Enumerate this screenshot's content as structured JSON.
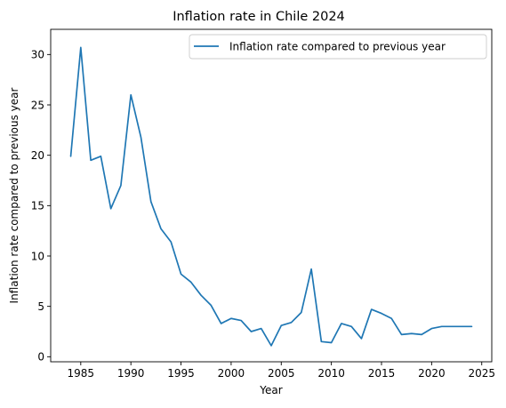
{
  "chart_data": {
    "type": "line",
    "title": "Inflation rate in Chile 2024",
    "xlabel": "Year",
    "ylabel": "Inflation rate compared to previous year",
    "xlim": [
      1982,
      2026
    ],
    "ylim": [
      -0.5,
      32.5
    ],
    "xticks": [
      1985,
      1990,
      1995,
      2000,
      2005,
      2010,
      2015,
      2020,
      2025
    ],
    "yticks": [
      0,
      5,
      10,
      15,
      20,
      25,
      30
    ],
    "grid": false,
    "legend_position": "top-right",
    "series": [
      {
        "name": "Inflation rate compared to previous year",
        "color": "#1f77b4",
        "x": [
          1984,
          1985,
          1986,
          1987,
          1988,
          1989,
          1990,
          1991,
          1992,
          1993,
          1994,
          1995,
          1996,
          1997,
          1998,
          1999,
          2000,
          2001,
          2002,
          2003,
          2004,
          2005,
          2006,
          2007,
          2008,
          2009,
          2010,
          2011,
          2012,
          2013,
          2014,
          2015,
          2016,
          2017,
          2018,
          2019,
          2020,
          2021,
          2022,
          2023,
          2024
        ],
        "y": [
          19.9,
          30.7,
          19.5,
          19.9,
          14.7,
          17.0,
          26.0,
          21.8,
          15.4,
          12.7,
          11.4,
          8.2,
          7.4,
          6.1,
          5.1,
          3.3,
          3.8,
          3.6,
          2.5,
          2.8,
          1.1,
          3.1,
          3.4,
          4.4,
          8.7,
          1.5,
          1.4,
          3.3,
          3.0,
          1.8,
          4.7,
          4.3,
          3.8,
          2.2,
          2.3,
          2.2,
          2.8,
          3.0,
          3.0,
          3.0,
          3.0
        ]
      }
    ]
  }
}
